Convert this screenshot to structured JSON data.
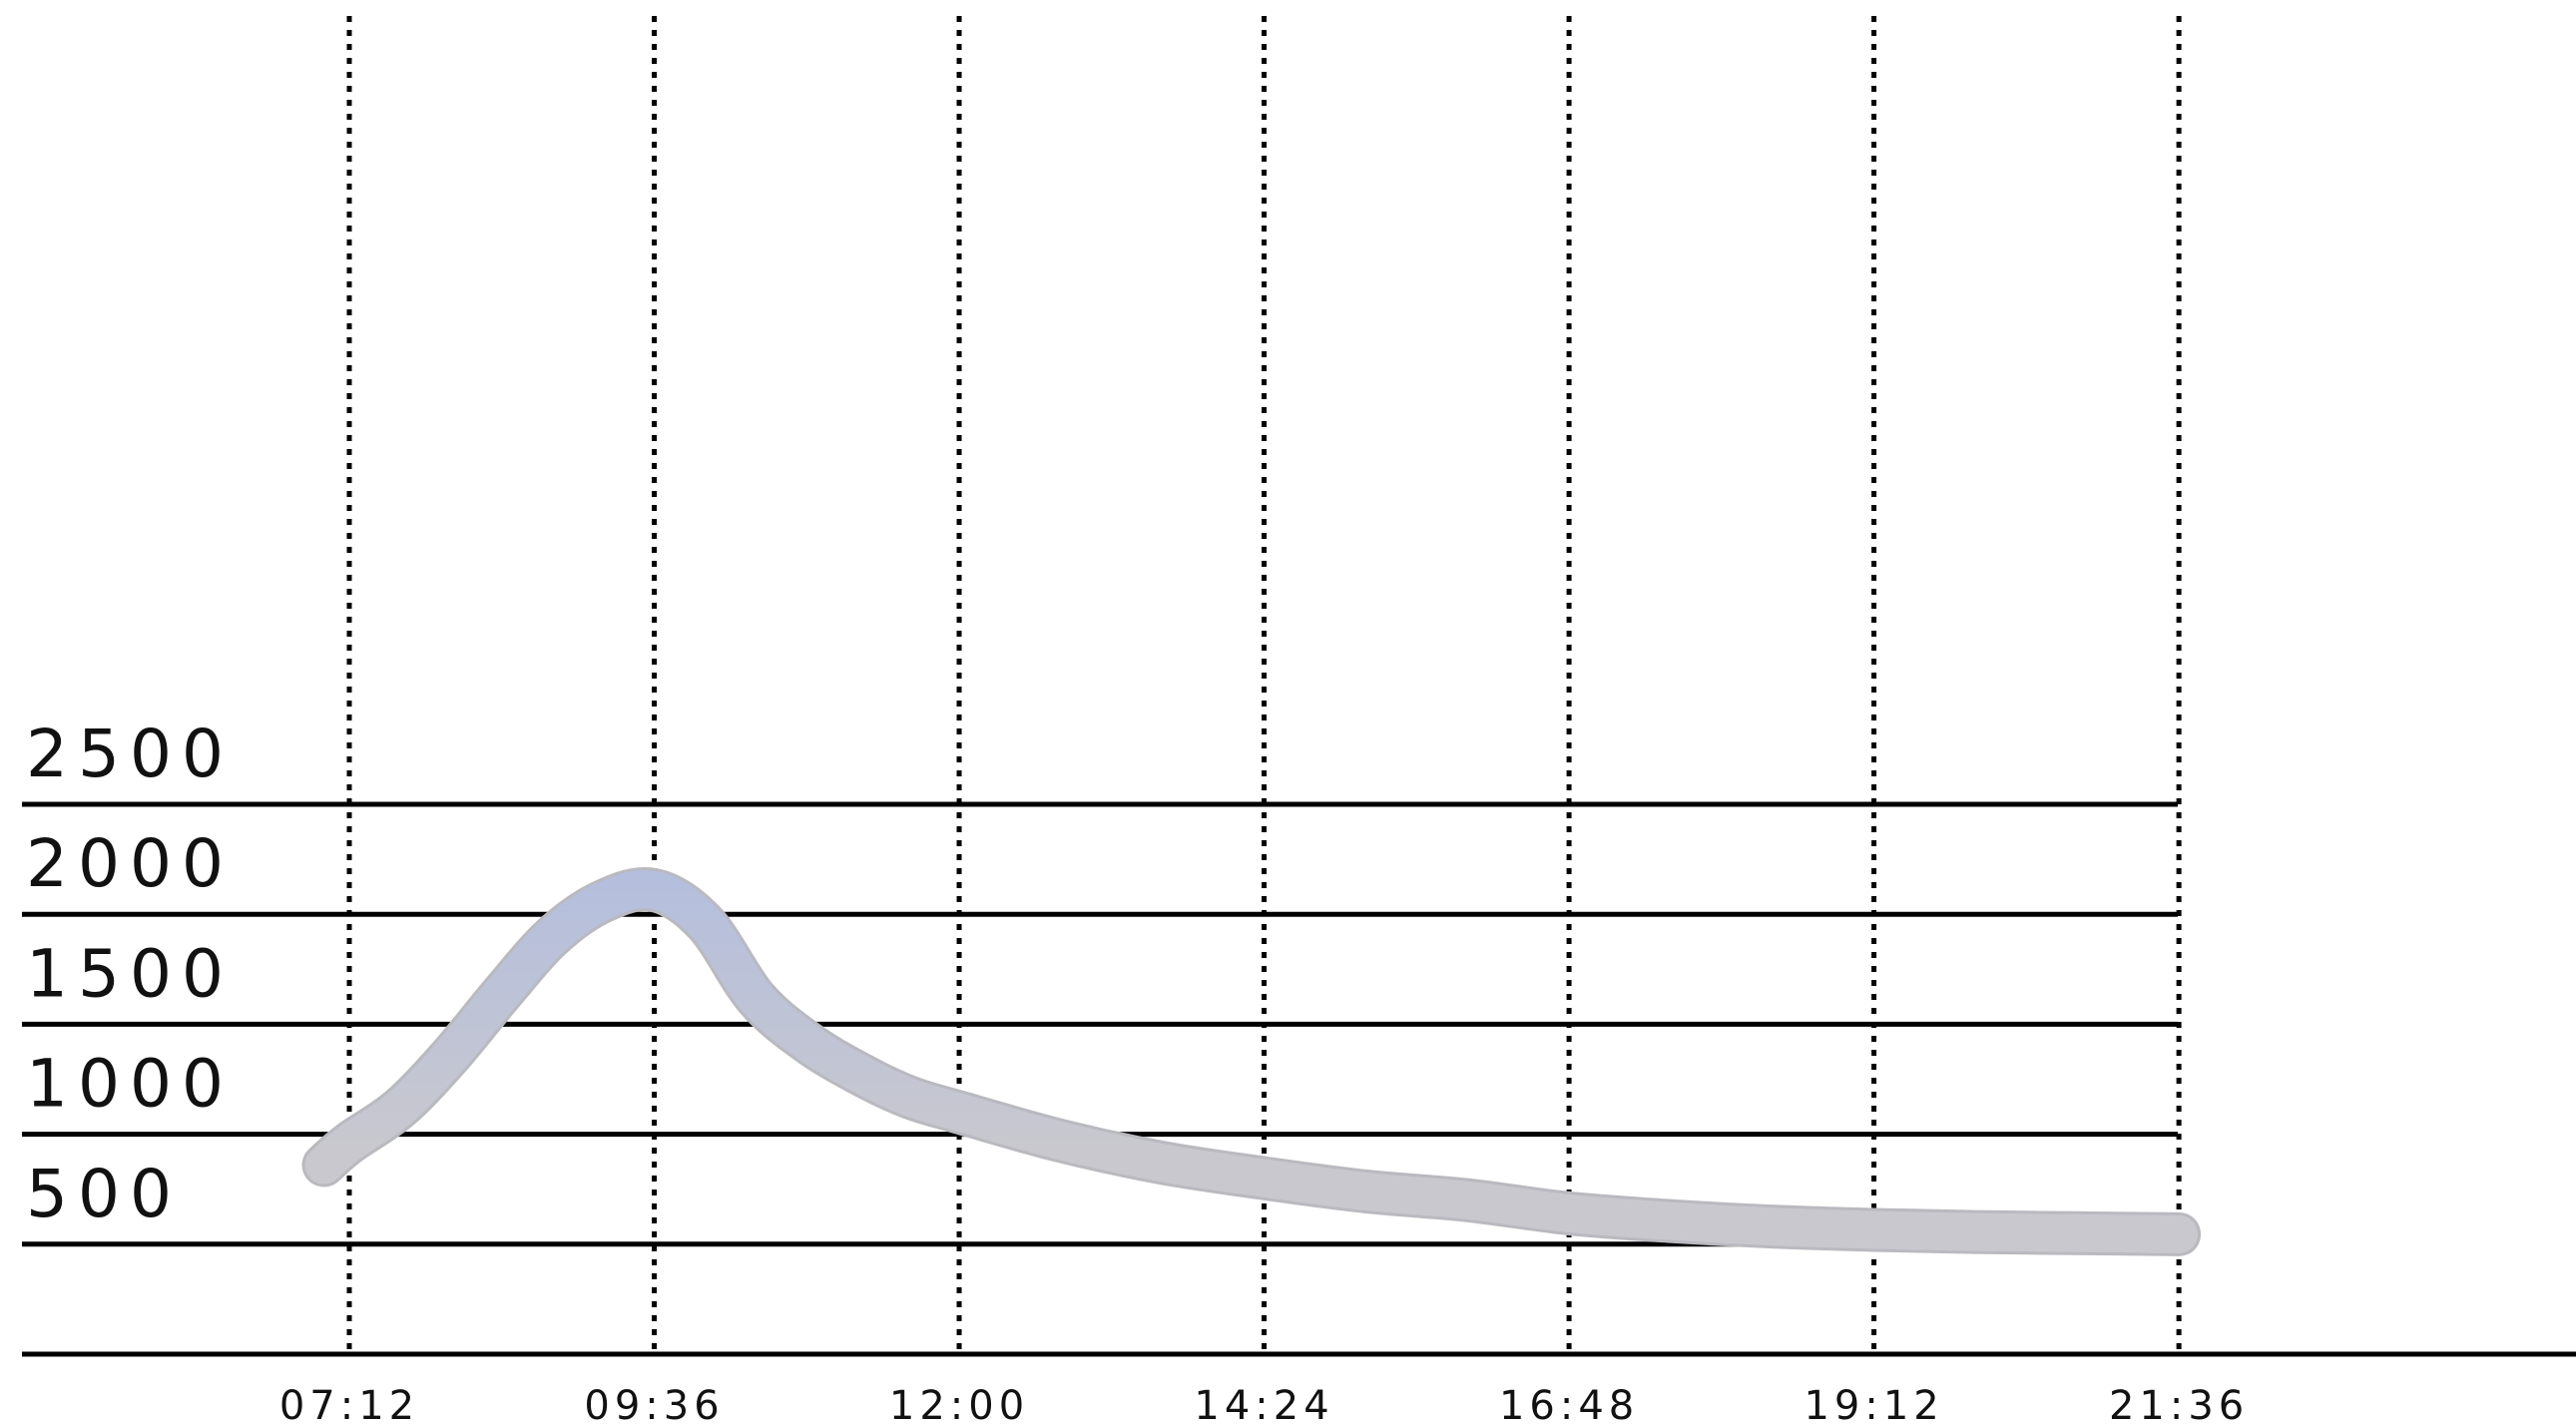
{
  "chart_data": {
    "type": "line",
    "title": "",
    "xlabel": "",
    "ylabel": "",
    "x_tick_labels": [
      "07:12",
      "09:36",
      "12:00",
      "14:24",
      "16:48",
      "19:12",
      "21:36"
    ],
    "y_tick_labels": [
      "2500",
      "2000",
      "1500",
      "1000",
      "500"
    ],
    "y_ticks": [
      2500,
      2000,
      1500,
      1000,
      500
    ],
    "ylim": [
      0,
      2500
    ],
    "xlim": [
      "06:00",
      "21:36"
    ],
    "grid": {
      "horizontal": "solid",
      "vertical": "dotted"
    },
    "legend": "none",
    "series": [
      {
        "x": [
          "07:00",
          "07:12",
          "07:36",
          "08:00",
          "08:24",
          "08:48",
          "09:12",
          "09:36",
          "10:00",
          "10:24",
          "10:48",
          "11:12",
          "11:36",
          "12:00",
          "12:48",
          "13:36",
          "14:24",
          "15:12",
          "16:00",
          "16:48",
          "17:36",
          "18:24",
          "19:12",
          "20:00",
          "20:48",
          "21:36"
        ],
        "values": [
          860,
          960,
          1120,
          1360,
          1640,
          1900,
          2060,
          2110,
          1960,
          1620,
          1420,
          1280,
          1170,
          1100,
          970,
          870,
          800,
          740,
          700,
          640,
          605,
          580,
          565,
          555,
          550,
          545
        ],
        "color_start": "#93AEF7",
        "color_end": "#C8C8CE"
      }
    ]
  }
}
